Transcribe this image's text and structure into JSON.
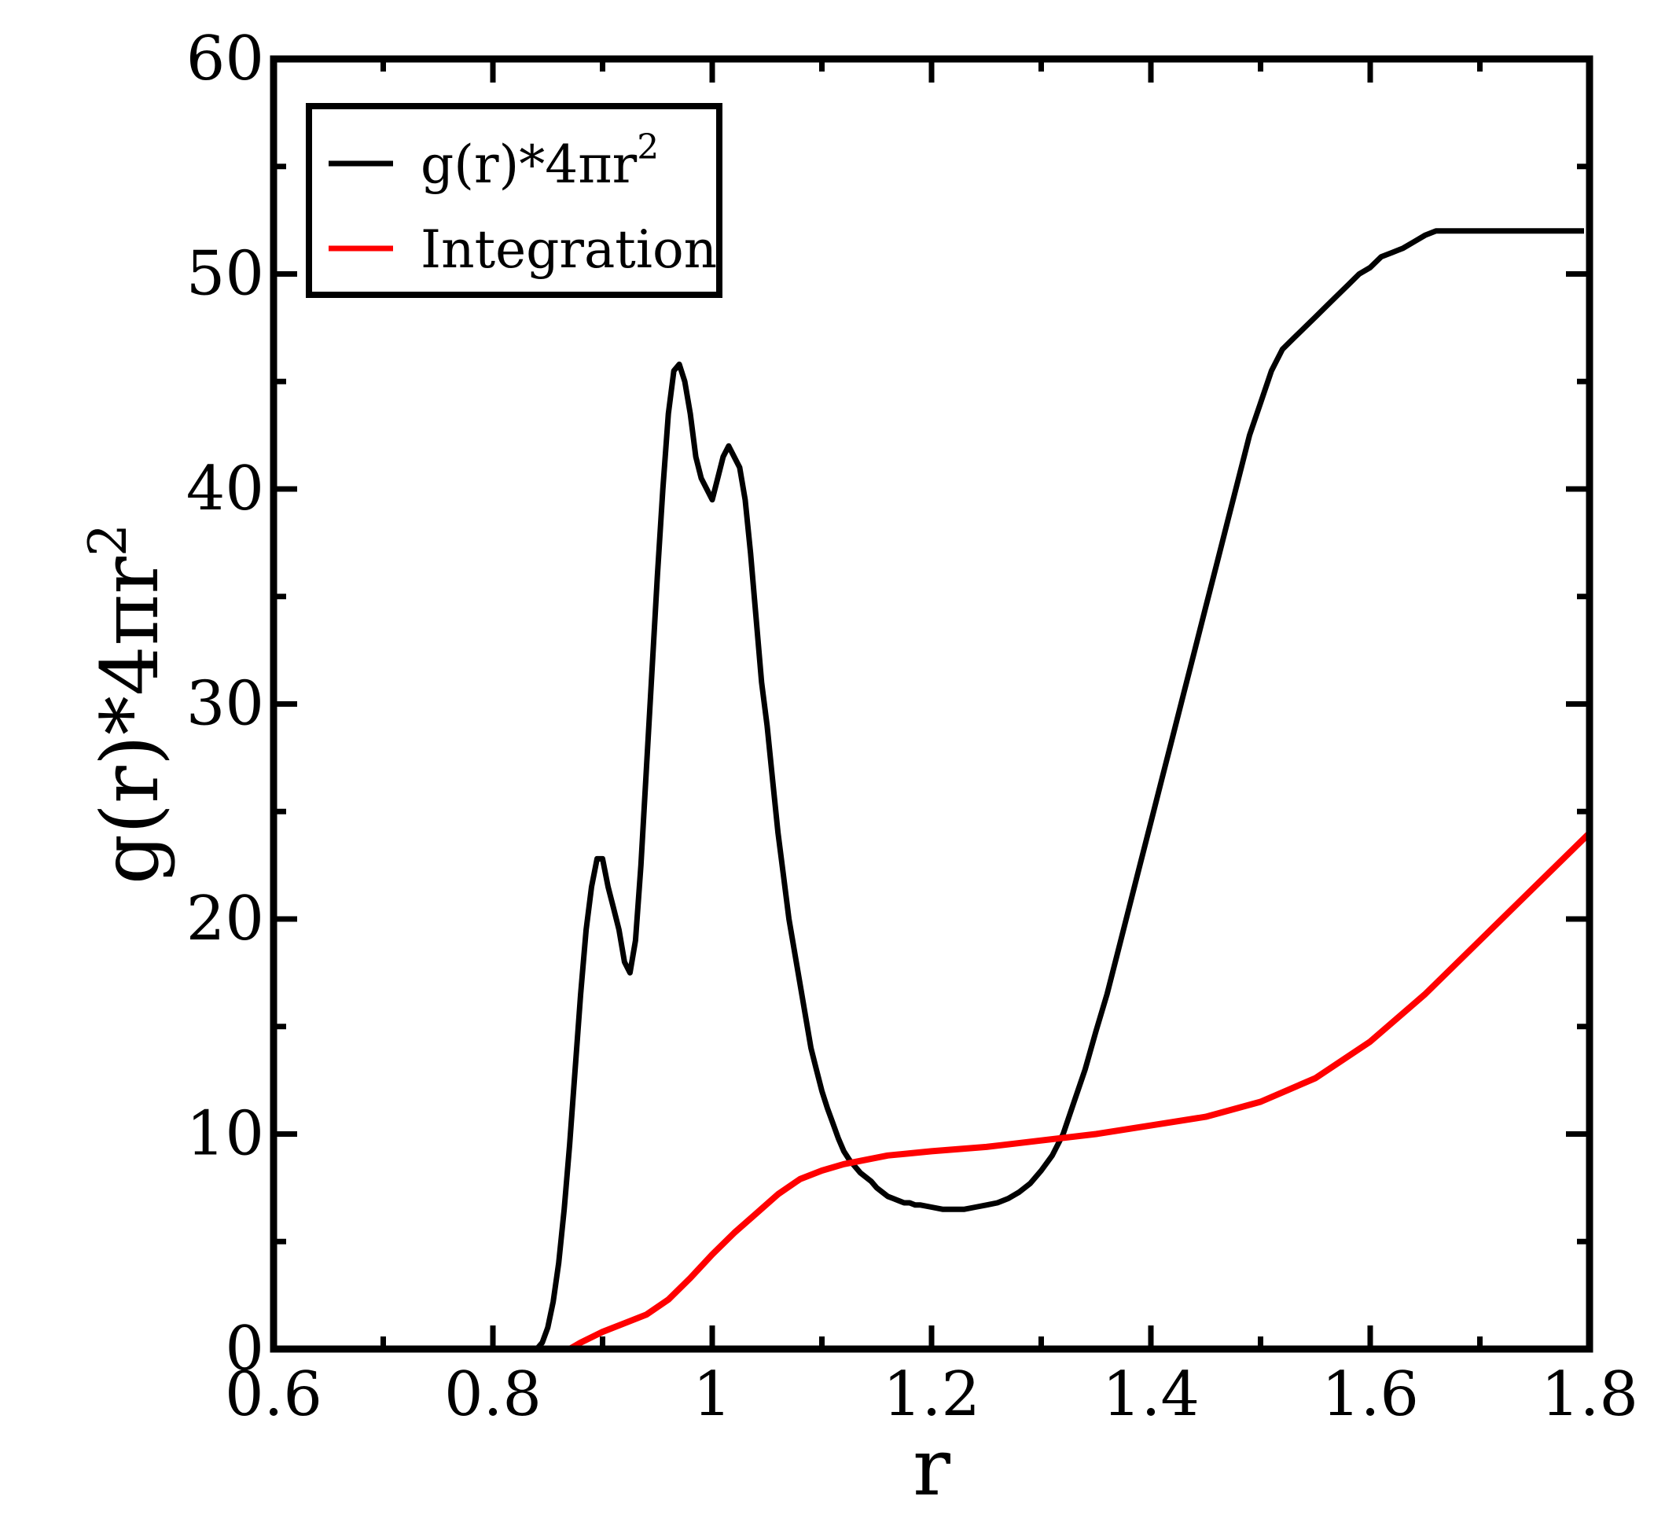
{
  "chart_data": {
    "type": "line",
    "title": "",
    "xlabel": "r",
    "ylabel": "g(r)*4πr²",
    "ylabel_base": "g(r)*4πr",
    "ylabel_sup": "2",
    "xlim": [
      0.6,
      1.8
    ],
    "ylim": [
      0,
      60
    ],
    "x_ticks": [
      0.6,
      0.8,
      1.0,
      1.2,
      1.4,
      1.6,
      1.8
    ],
    "x_tick_labels": [
      "0.6",
      "0.8",
      "1",
      "1.2",
      "1.4",
      "1.6",
      "1.8"
    ],
    "y_ticks": [
      0,
      10,
      20,
      30,
      40,
      50,
      60
    ],
    "y_tick_labels": [
      "0",
      "10",
      "20",
      "30",
      "40",
      "50",
      "60"
    ],
    "grid": false,
    "legend_position": "top-left",
    "series": [
      {
        "name": "g(r)*4πr²",
        "name_base": "g(r)*4πr",
        "name_sup": "2",
        "color": "#000000",
        "x": [
          0.84,
          0.845,
          0.85,
          0.855,
          0.86,
          0.865,
          0.87,
          0.875,
          0.88,
          0.885,
          0.89,
          0.895,
          0.9,
          0.905,
          0.91,
          0.915,
          0.92,
          0.925,
          0.93,
          0.935,
          0.94,
          0.945,
          0.95,
          0.955,
          0.96,
          0.965,
          0.97,
          0.975,
          0.98,
          0.985,
          0.99,
          0.995,
          1.0,
          1.005,
          1.01,
          1.015,
          1.02,
          1.025,
          1.03,
          1.035,
          1.04,
          1.045,
          1.05,
          1.055,
          1.06,
          1.065,
          1.07,
          1.075,
          1.08,
          1.085,
          1.09,
          1.095,
          1.1,
          1.105,
          1.11,
          1.115,
          1.12,
          1.125,
          1.13,
          1.135,
          1.14,
          1.145,
          1.15,
          1.155,
          1.16,
          1.165,
          1.17,
          1.175,
          1.18,
          1.185,
          1.19,
          1.2,
          1.21,
          1.22,
          1.23,
          1.24,
          1.25,
          1.26,
          1.27,
          1.28,
          1.29,
          1.3,
          1.31,
          1.32,
          1.33,
          1.34,
          1.35,
          1.36,
          1.37,
          1.38,
          1.39,
          1.4,
          1.41,
          1.42,
          1.43,
          1.44,
          1.45,
          1.46,
          1.47,
          1.48,
          1.49,
          1.5,
          1.51,
          1.52,
          1.53,
          1.54,
          1.55,
          1.56,
          1.57,
          1.58,
          1.59,
          1.6,
          1.61,
          1.62,
          1.63,
          1.64,
          1.65,
          1.66,
          1.67,
          1.68,
          1.69,
          1.7,
          1.71,
          1.72,
          1.73,
          1.74,
          1.75,
          1.76,
          1.77,
          1.78,
          1.79,
          1.795
        ],
        "values": [
          0.0,
          0.3,
          1.0,
          2.2,
          4.0,
          6.5,
          9.5,
          13.0,
          16.5,
          19.5,
          21.5,
          22.8,
          22.8,
          21.5,
          20.5,
          19.5,
          18.0,
          17.5,
          19.0,
          22.5,
          27.0,
          31.5,
          36.0,
          40.0,
          43.5,
          45.5,
          45.8,
          45.0,
          43.5,
          41.5,
          40.5,
          40.0,
          39.5,
          40.5,
          41.5,
          42.0,
          41.5,
          41.0,
          39.5,
          37.0,
          34.0,
          31.0,
          29.0,
          26.5,
          24.0,
          22.0,
          20.0,
          18.5,
          17.0,
          15.5,
          14.0,
          13.0,
          12.0,
          11.2,
          10.5,
          9.8,
          9.2,
          8.8,
          8.5,
          8.2,
          8.0,
          7.8,
          7.5,
          7.3,
          7.1,
          7.0,
          6.9,
          6.8,
          6.8,
          6.7,
          6.7,
          6.6,
          6.5,
          6.5,
          6.5,
          6.6,
          6.7,
          6.8,
          7.0,
          7.3,
          7.7,
          8.3,
          9.0,
          10.0,
          11.5,
          13.0,
          14.8,
          16.5,
          18.5,
          20.5,
          22.5,
          24.5,
          26.5,
          28.5,
          30.5,
          32.5,
          34.5,
          36.5,
          38.5,
          40.5,
          42.5,
          44.0,
          45.5,
          46.5,
          47.0,
          47.5,
          48.0,
          48.5,
          49.0,
          49.5,
          50.0,
          50.3,
          50.8,
          51.0,
          51.2,
          51.5,
          51.8,
          52.0,
          52.0,
          52.0,
          52.0,
          52.0,
          52.0,
          52.0,
          52.0,
          52.0,
          52.0,
          52.0,
          52.0,
          52.0,
          52.0,
          52.0
        ]
      },
      {
        "name": "Integration",
        "color": "#ff0000",
        "x": [
          0.87,
          0.88,
          0.9,
          0.92,
          0.94,
          0.96,
          0.98,
          1.0,
          1.02,
          1.04,
          1.06,
          1.08,
          1.1,
          1.12,
          1.14,
          1.16,
          1.18,
          1.2,
          1.25,
          1.3,
          1.35,
          1.4,
          1.45,
          1.5,
          1.55,
          1.6,
          1.65,
          1.7,
          1.75,
          1.8
        ],
        "values": [
          0.0,
          0.3,
          0.8,
          1.2,
          1.6,
          2.3,
          3.3,
          4.4,
          5.4,
          6.3,
          7.2,
          7.9,
          8.3,
          8.6,
          8.8,
          9.0,
          9.1,
          9.2,
          9.4,
          9.7,
          10.0,
          10.4,
          10.8,
          11.5,
          12.6,
          14.3,
          16.5,
          19.0,
          21.5,
          24.0
        ]
      }
    ]
  }
}
